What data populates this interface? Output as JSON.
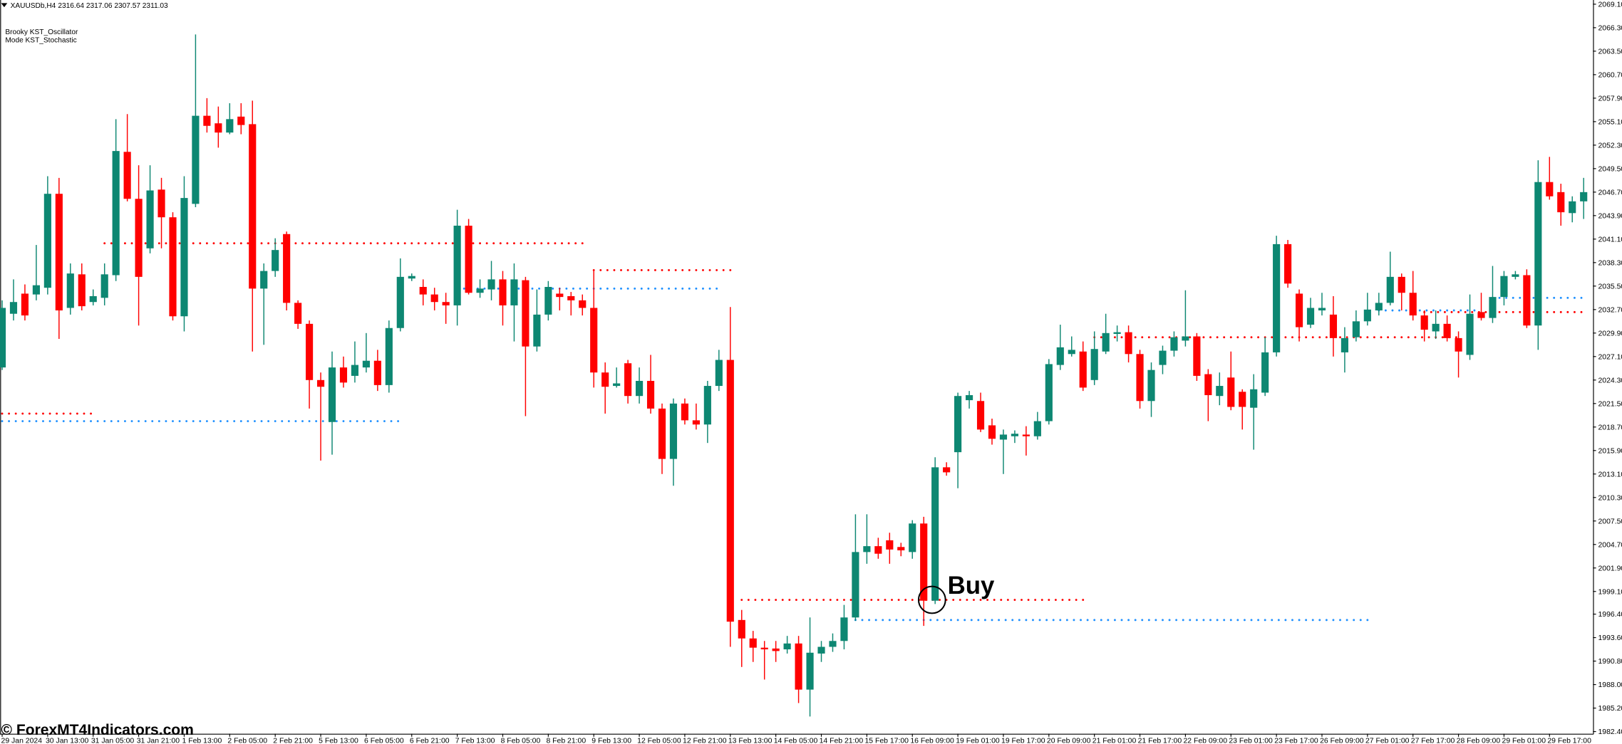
{
  "chart_data": {
    "type": "candlestick",
    "title": "XAUUSDb,H4",
    "subtitle": "2316.64 2317.06 2307.57 2311.03",
    "indicators": [
      "Brooky KST_Oscillator",
      "Mode KST_Stochastic"
    ],
    "watermark": "© ForexMT4Indicators.com",
    "up_color": "#0d8772",
    "down_color": "#ff0000",
    "categories": [
      "29 Jan 2024",
      null,
      null,
      null,
      "30 Jan 13:00",
      null,
      null,
      null,
      "31 Jan 05:00",
      null,
      null,
      null,
      "31 Jan 21:00",
      null,
      null,
      null,
      "1 Feb 13:00",
      null,
      null,
      null,
      "2 Feb 05:00",
      null,
      null,
      null,
      "2 Feb 21:00",
      null,
      null,
      null,
      "5 Feb 13:00",
      null,
      null,
      null,
      "6 Feb 05:00",
      null,
      null,
      null,
      "6 Feb 21:00",
      null,
      null,
      null,
      "7 Feb 13:00",
      null,
      null,
      null,
      "8 Feb 05:00",
      null,
      null,
      null,
      "8 Feb 21:00",
      null,
      null,
      null,
      "9 Feb 13:00",
      null,
      null,
      null,
      "12 Feb 05:00",
      null,
      null,
      null,
      "12 Feb 21:00",
      null,
      null,
      null,
      "13 Feb 13:00",
      null,
      null,
      null,
      "14 Feb 05:00",
      null,
      null,
      null,
      "14 Feb 21:00",
      null,
      null,
      null,
      "15 Feb 17:00",
      null,
      null,
      null,
      "16 Feb 09:00",
      null,
      null,
      null,
      "19 Feb 01:00",
      null,
      null,
      null,
      "19 Feb 17:00",
      null,
      null,
      null,
      "20 Feb 09:00",
      null,
      null,
      null,
      "21 Feb 01:00",
      null,
      null,
      null,
      "21 Feb 17:00",
      null,
      null,
      null,
      "22 Feb 09:00",
      null,
      null,
      null,
      "23 Feb 01:00",
      null,
      null,
      null,
      "23 Feb 17:00",
      null,
      null,
      null,
      "26 Feb 09:00",
      null,
      null,
      null,
      "27 Feb 01:00",
      null,
      null,
      null,
      "27 Feb 17:00",
      null,
      null,
      null,
      "28 Feb 09:00",
      null,
      null,
      null,
      "29 Feb 01:00",
      null,
      null,
      null,
      "29 Feb 17:00",
      null,
      null,
      null
    ],
    "open": [
      2025.8,
      2032.2,
      2034.6,
      2034.5,
      2035.3,
      2046.5,
      2032.9,
      2036.9,
      2033.6,
      2034.1,
      2036.8,
      2051.5,
      2045.9,
      2040.0,
      2047.0,
      2043.7,
      2031.9,
      2045.3,
      2055.8,
      2054.9,
      2053.8,
      2055.7,
      2054.8,
      2035.2,
      2037.3,
      2041.7,
      2033.5,
      2031.0,
      2024.3,
      2019.3,
      2025.8,
      2024.8,
      2025.8,
      2026.6,
      2023.7,
      2030.5,
      2036.4,
      2035.4,
      2034.5,
      2033.6,
      2033.2,
      2042.7,
      2034.7,
      2035.1,
      2036.3,
      2033.2,
      2036.2,
      2028.3,
      2032.1,
      2034.6,
      2034.3,
      2033.8,
      2032.9,
      2025.2,
      2023.6,
      2026.3,
      2022.4,
      2024.2,
      2020.9,
      2014.9,
      2021.5,
      2019.5,
      2019.0,
      2023.6,
      2026.7,
      1995.7,
      1993.5,
      1992.4,
      1992.3,
      1992.2,
      1992.9,
      1987.4,
      1991.7,
      1992.5,
      1993.2,
      1996.0,
      2003.8,
      2004.5,
      2005.2,
      2004.4,
      2003.8,
      2007.2,
      1998.0,
      2013.9,
      2015.7,
      2021.9,
      2021.8,
      2018.9,
      2017.2,
      2017.6,
      2017.8,
      2017.6,
      2019.4,
      2026.1,
      2027.4,
      2027.7,
      2024.3,
      2027.7,
      2029.8,
      2030.0,
      2027.4,
      2021.8,
      2026.1,
      2027.8,
      2029.0,
      2029.5,
      2025.0,
      2022.4,
      2024.6,
      2022.9,
      2021.0,
      2022.8,
      2027.6,
      2040.5,
      2034.6,
      2030.9,
      2032.6,
      2032.1,
      2027.6,
      2029.4,
      2031.3,
      2032.6,
      2033.5,
      2036.6,
      2034.7,
      2032.0,
      2030.1,
      2031.0,
      2029.3,
      2027.3,
      2032.4,
      2031.7,
      2034.2,
      2036.6,
      2036.8,
      2030.8,
      2047.9,
      2046.7,
      2044.2,
      2045.6
    ],
    "high": [
      2033.8,
      2036.3,
      2035.7,
      2040.4,
      2048.6,
      2048.4,
      2038.2,
      2038.2,
      2035.1,
      2038.2,
      2055.4,
      2056.0,
      2049.9,
      2049.9,
      2048.4,
      2044.3,
      2048.6,
      2065.5,
      2057.9,
      2056.9,
      2057.3,
      2057.3,
      2057.6,
      2038.2,
      2041.2,
      2042.0,
      2033.8,
      2031.4,
      2025.2,
      2027.7,
      2027.1,
      2028.9,
      2029.9,
      2027.9,
      2031.4,
      2038.8,
      2037.0,
      2036.3,
      2035.3,
      2034.7,
      2044.6,
      2043.5,
      2036.3,
      2038.5,
      2037.3,
      2038.2,
      2036.6,
      2035.1,
      2036.1,
      2035.3,
      2034.8,
      2034.5,
      2037.3,
      2026.4,
      2025.8,
      2026.7,
      2025.8,
      2027.3,
      2021.5,
      2022.1,
      2022.1,
      2021.5,
      2024.2,
      2027.9,
      2033.0,
      1996.9,
      1994.4,
      1993.2,
      1993.2,
      1993.8,
      1993.8,
      1996.0,
      1993.2,
      1994.1,
      1997.5,
      2008.3,
      2008.3,
      2005.5,
      2006.1,
      2004.9,
      2007.6,
      2008.0,
      2015.1,
      2014.5,
      2022.8,
      2023.0,
      2022.8,
      2019.7,
      2018.4,
      2018.3,
      2018.8,
      2020.5,
      2026.8,
      2030.9,
      2029.5,
      2028.9,
      2030.1,
      2032.2,
      2030.8,
      2030.8,
      2027.9,
      2026.4,
      2028.4,
      2030.1,
      2035.0,
      2029.9,
      2025.6,
      2025.2,
      2027.7,
      2023.2,
      2025.0,
      2029.4,
      2041.5,
      2041.0,
      2035.1,
      2034.1,
      2034.7,
      2034.3,
      2030.6,
      2032.6,
      2034.7,
      2034.7,
      2039.6,
      2037.0,
      2037.3,
      2032.6,
      2032.6,
      2032.0,
      2030.1,
      2034.5,
      2034.7,
      2037.9,
      2037.3,
      2037.3,
      2037.5,
      2050.5,
      2050.9,
      2047.7,
      2046.2,
      2048.4
    ],
    "low": [
      2025.5,
      2031.4,
      2031.4,
      2033.8,
      2034.5,
      2029.2,
      2032.1,
      2032.6,
      2033.2,
      2033.2,
      2036.1,
      2045.6,
      2030.8,
      2039.4,
      2040.0,
      2031.4,
      2030.1,
      2044.9,
      2053.8,
      2052.0,
      2053.6,
      2053.6,
      2027.7,
      2028.5,
      2036.6,
      2032.6,
      2030.4,
      2020.9,
      2014.7,
      2015.4,
      2023.4,
      2024.0,
      2025.2,
      2023.0,
      2022.8,
      2030.1,
      2036.1,
      2033.2,
      2032.6,
      2031.0,
      2030.8,
      2034.5,
      2034.1,
      2033.8,
      2030.8,
      2028.9,
      2020.0,
      2027.7,
      2031.4,
      2032.6,
      2032.0,
      2032.0,
      2023.4,
      2020.3,
      2023.4,
      2021.5,
      2021.5,
      2020.3,
      2013.1,
      2011.7,
      2019.0,
      2018.4,
      2016.8,
      2023.0,
      1992.5,
      1990.1,
      1990.7,
      1988.6,
      1990.7,
      1991.7,
      1985.8,
      1984.2,
      1990.7,
      1991.9,
      1992.2,
      1995.6,
      2002.4,
      2003.0,
      2002.4,
      2003.3,
      2003.0,
      1995.0,
      1997.6,
      2012.9,
      2011.4,
      2020.9,
      2018.1,
      2016.6,
      2013.1,
      2016.8,
      2015.3,
      2017.2,
      2019.0,
      2025.5,
      2027.1,
      2023.0,
      2023.7,
      2027.4,
      2028.9,
      2026.4,
      2020.9,
      2019.9,
      2025.0,
      2027.1,
      2028.3,
      2024.2,
      2019.4,
      2021.3,
      2020.7,
      2018.4,
      2016.0,
      2022.4,
      2027.1,
      2035.3,
      2028.9,
      2030.5,
      2032.0,
      2027.1,
      2025.2,
      2028.9,
      2030.8,
      2032.0,
      2033.2,
      2032.6,
      2031.4,
      2028.9,
      2029.2,
      2028.9,
      2024.6,
      2026.7,
      2031.4,
      2031.1,
      2033.2,
      2036.3,
      2030.5,
      2027.9,
      2045.8,
      2042.7,
      2043.1,
      2043.5
    ],
    "close": [
      2032.9,
      2033.6,
      2032.0,
      2035.6,
      2046.5,
      2032.6,
      2037.0,
      2033.1,
      2034.3,
      2036.9,
      2051.6,
      2045.9,
      2036.6,
      2046.9,
      2043.7,
      2031.9,
      2046.0,
      2055.8,
      2054.6,
      2053.8,
      2055.4,
      2054.7,
      2035.2,
      2037.3,
      2039.8,
      2033.5,
      2031.0,
      2024.3,
      2023.5,
      2025.8,
      2024.0,
      2026.1,
      2026.6,
      2023.7,
      2030.5,
      2036.6,
      2036.7,
      2034.5,
      2033.6,
      2033.2,
      2042.7,
      2034.7,
      2035.2,
      2036.3,
      2033.2,
      2036.3,
      2028.3,
      2032.1,
      2035.4,
      2034.2,
      2033.8,
      2032.9,
      2025.2,
      2023.5,
      2023.9,
      2022.4,
      2024.2,
      2020.9,
      2014.9,
      2021.5,
      2019.5,
      2019.0,
      2023.6,
      2026.7,
      1995.5,
      1993.5,
      1992.4,
      1992.2,
      1992.0,
      1992.9,
      1987.4,
      1991.8,
      1992.5,
      1993.2,
      1996.0,
      2003.8,
      2004.5,
      2003.6,
      2004.1,
      2004.0,
      2007.2,
      1998.0,
      2013.9,
      2013.3,
      2022.4,
      2022.5,
      2018.4,
      2017.3,
      2017.8,
      2017.9,
      2017.6,
      2019.4,
      2026.2,
      2028.2,
      2027.9,
      2023.4,
      2028.0,
      2029.9,
      2030.0,
      2027.4,
      2021.8,
      2025.5,
      2027.8,
      2029.4,
      2029.5,
      2024.8,
      2022.5,
      2023.6,
      2021.1,
      2021.1,
      2023.2,
      2027.6,
      2040.5,
      2035.8,
      2030.6,
      2032.9,
      2032.9,
      2029.3,
      2029.3,
      2031.3,
      2032.7,
      2033.5,
      2036.6,
      2034.7,
      2032.0,
      2030.3,
      2031.0,
      2029.3,
      2027.7,
      2032.2,
      2031.7,
      2034.2,
      2036.7,
      2036.9,
      2030.8,
      2047.9,
      2046.2,
      2044.3,
      2045.6,
      2046.7
    ],
    "levels": [
      {
        "color": "#ff0000",
        "value": 2040.6,
        "from": 9,
        "to": 51
      },
      {
        "color": "#ff0000",
        "value": 2020.3,
        "from": 0,
        "to": 8
      },
      {
        "color": "#1e90ff",
        "value": 2019.4,
        "from": 0,
        "to": 35
      },
      {
        "color": "#ff0000",
        "value": 2037.4,
        "from": 52,
        "to": 64
      },
      {
        "color": "#1e90ff",
        "value": 2035.2,
        "from": 40,
        "to": 63
      },
      {
        "color": "#ff0000",
        "value": 1998.1,
        "from": 65,
        "to": 95
      },
      {
        "color": "#1e90ff",
        "value": 1995.7,
        "from": 75,
        "to": 120
      },
      {
        "color": "#ff0000",
        "value": 2029.4,
        "from": 96,
        "to": 128
      },
      {
        "color": "#1e90ff",
        "value": 2032.6,
        "from": 121,
        "to": 130
      },
      {
        "color": "#1e90ff",
        "value": 2034.1,
        "from": 131,
        "to": 139
      },
      {
        "color": "#ff0000",
        "value": 2032.4,
        "from": 125,
        "to": 139
      }
    ],
    "annotations": [
      {
        "text": "Buy",
        "x": 82,
        "y": 1998.1
      }
    ],
    "ylim": [
      1982.15,
      2069.6
    ],
    "yticks": [
      {
        "value": 2069.1,
        "label": "2069.10"
      },
      {
        "value": 2066.3,
        "label": "2066.30"
      },
      {
        "value": 2063.5,
        "label": "2063.50"
      },
      {
        "value": 2060.7,
        "label": "2060.70"
      },
      {
        "value": 2057.9,
        "label": "2057.90"
      },
      {
        "value": 2055.1,
        "label": "2055.10"
      },
      {
        "value": 2052.3,
        "label": "2052.30"
      },
      {
        "value": 2049.5,
        "label": "2049.50"
      },
      {
        "value": 2046.7,
        "label": "2046.70"
      },
      {
        "value": 2043.9,
        "label": "2043.90"
      },
      {
        "value": 2041.1,
        "label": "2041.10"
      },
      {
        "value": 2038.3,
        "label": "2038.30"
      },
      {
        "value": 2035.5,
        "label": "2035.50"
      },
      {
        "value": 2032.7,
        "label": "2032.70"
      },
      {
        "value": 2029.9,
        "label": "2029.90"
      },
      {
        "value": 2027.1,
        "label": "2027.10"
      },
      {
        "value": 2024.3,
        "label": "2024.30"
      },
      {
        "value": 2021.5,
        "label": "2021.50"
      },
      {
        "value": 2018.7,
        "label": "2018.70"
      },
      {
        "value": 2015.9,
        "label": "2015.90"
      },
      {
        "value": 2013.1,
        "label": "2013.10"
      },
      {
        "value": 2010.3,
        "label": "2010.30"
      },
      {
        "value": 2007.5,
        "label": "2007.50"
      },
      {
        "value": 2004.7,
        "label": "2004.70"
      },
      {
        "value": 2001.9,
        "label": "2001.90"
      },
      {
        "value": 1999.1,
        "label": "1999.10"
      },
      {
        "value": 1996.4,
        "label": "1996.40"
      },
      {
        "value": 1993.6,
        "label": "1993.60"
      },
      {
        "value": 1990.8,
        "label": "1990.80"
      },
      {
        "value": 1988,
        "label": "1988.00"
      },
      {
        "value": 1985.2,
        "label": "1985.20"
      },
      {
        "value": 1982.4,
        "label": "1982.40"
      }
    ],
    "grid": false
  }
}
